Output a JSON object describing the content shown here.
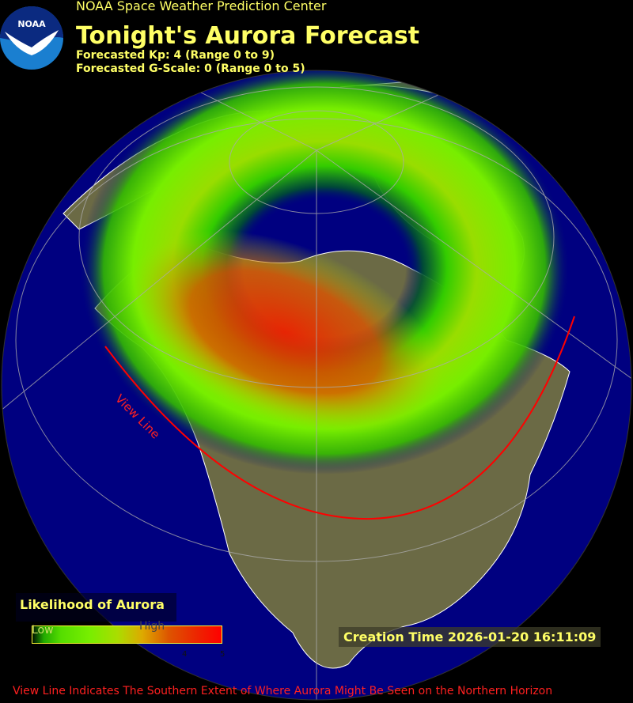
{
  "header": {
    "organization": "NOAA Space Weather Prediction Center",
    "logo_text": "NOAA",
    "title": "Tonight's Aurora Forecast",
    "kp_line": "Forecasted Kp: 4 (Range 0 to 9)",
    "gscale_line": "Forecasted G-Scale: 0 (Range 0 to 5)"
  },
  "forecast": {
    "kp": 4,
    "kp_range": [
      0,
      9
    ],
    "g_scale": 0,
    "g_scale_range": [
      0,
      5
    ]
  },
  "map": {
    "view_line_label": "View Line",
    "colors": {
      "ocean": "#000080",
      "land": "#6b6a45",
      "borders": "#ffffff",
      "view_line": "#ff0000",
      "graticule": "#aaaaaa"
    }
  },
  "legend": {
    "title": "Likelihood of Aurora",
    "low_label": "Low",
    "high_label": "High",
    "ticks": [
      "4",
      "5"
    ],
    "colors": [
      "#001000",
      "#55dd00",
      "#aadd00",
      "#dd5500",
      "#ff0000"
    ]
  },
  "creation_time": "Creation Time 2026-01-20 16:11:09",
  "footnote": "View Line Indicates The Southern Extent of Where Aurora Might Be Seen on the Northern Horizon"
}
